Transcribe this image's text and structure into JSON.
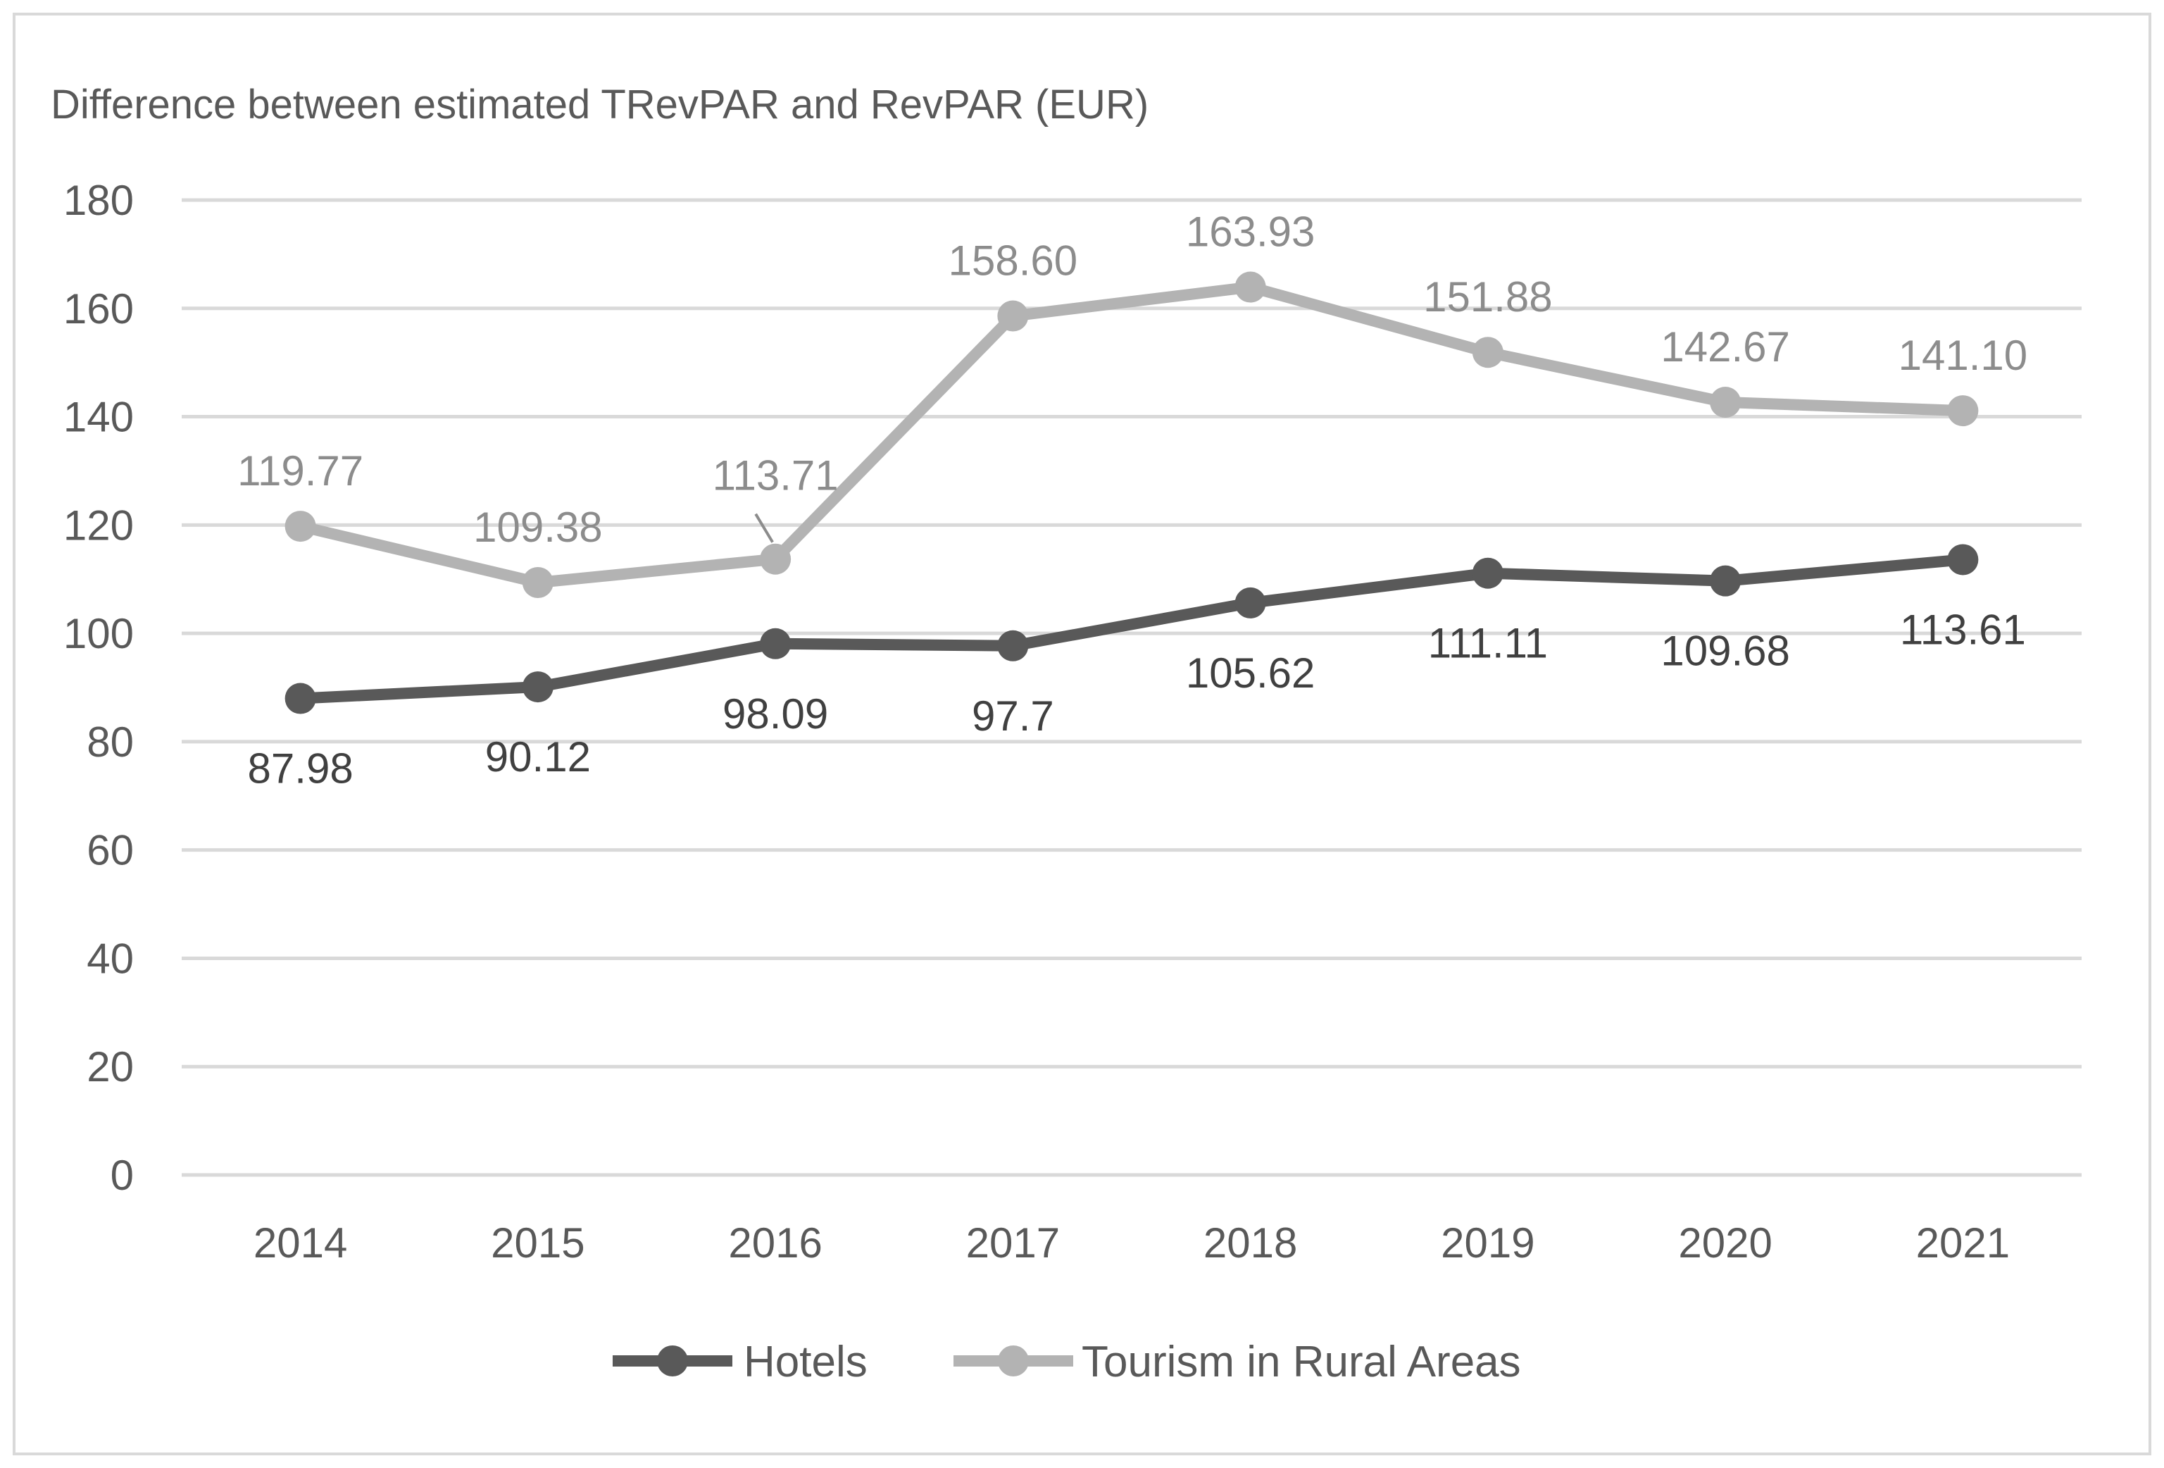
{
  "chart_data": {
    "type": "line",
    "title": "Difference between estimated TRevPAR and RevPAR (EUR)",
    "xlabel": "",
    "ylabel": "",
    "categories": [
      "2014",
      "2015",
      "2016",
      "2017",
      "2018",
      "2019",
      "2020",
      "2021"
    ],
    "ylim": [
      0,
      180
    ],
    "yticks": [
      0,
      20,
      40,
      60,
      80,
      100,
      120,
      140,
      160,
      180
    ],
    "grid": true,
    "legend_position": "bottom",
    "series": [
      {
        "name": "Hotels",
        "color": "#595959",
        "label_placement": "below",
        "values": [
          87.98,
          90.12,
          98.09,
          97.7,
          105.62,
          111.11,
          109.68,
          113.61
        ],
        "labels": [
          "87.98",
          "90.12",
          "98.09",
          "97.7",
          "105.62",
          "111.11",
          "109.68",
          "113.61"
        ]
      },
      {
        "name": "Tourism in Rural Areas",
        "color": "#b3b3b3",
        "label_placement": "above",
        "values": [
          119.77,
          109.38,
          113.71,
          158.6,
          163.93,
          151.88,
          142.67,
          141.1
        ],
        "labels": [
          "119.77",
          "109.38",
          "113.71",
          "158.60",
          "163.93",
          "151.88",
          "142.67",
          "141.10"
        ]
      }
    ],
    "colors": {
      "grid": "#d9d9d9",
      "text": "#595959",
      "frame": "#d9d9d9",
      "rural_label": "#8c8c8c"
    }
  }
}
